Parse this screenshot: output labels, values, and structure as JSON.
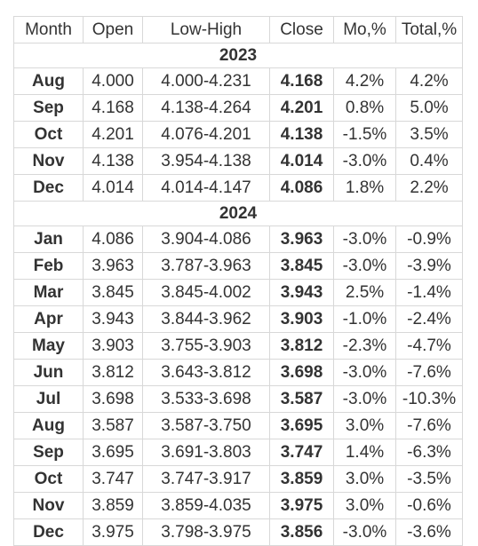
{
  "table": {
    "header": [
      "Month",
      "Open",
      "Low-High",
      "Close",
      "Mo,%",
      "Total,%"
    ],
    "groups": [
      {
        "year": "2023",
        "rows": [
          [
            "Aug",
            "4.000",
            "4.000-4.231",
            "4.168",
            "4.2%",
            "4.2%"
          ],
          [
            "Sep",
            "4.168",
            "4.138-4.264",
            "4.201",
            "0.8%",
            "5.0%"
          ],
          [
            "Oct",
            "4.201",
            "4.076-4.201",
            "4.138",
            "-1.5%",
            "3.5%"
          ],
          [
            "Nov",
            "4.138",
            "3.954-4.138",
            "4.014",
            "-3.0%",
            "0.4%"
          ],
          [
            "Dec",
            "4.014",
            "4.014-4.147",
            "4.086",
            "1.8%",
            "2.2%"
          ]
        ]
      },
      {
        "year": "2024",
        "rows": [
          [
            "Jan",
            "4.086",
            "3.904-4.086",
            "3.963",
            "-3.0%",
            "-0.9%"
          ],
          [
            "Feb",
            "3.963",
            "3.787-3.963",
            "3.845",
            "-3.0%",
            "-3.9%"
          ],
          [
            "Mar",
            "3.845",
            "3.845-4.002",
            "3.943",
            "2.5%",
            "-1.4%"
          ],
          [
            "Apr",
            "3.943",
            "3.844-3.962",
            "3.903",
            "-1.0%",
            "-2.4%"
          ],
          [
            "May",
            "3.903",
            "3.755-3.903",
            "3.812",
            "-2.3%",
            "-4.7%"
          ],
          [
            "Jun",
            "3.812",
            "3.643-3.812",
            "3.698",
            "-3.0%",
            "-7.6%"
          ],
          [
            "Jul",
            "3.698",
            "3.533-3.698",
            "3.587",
            "-3.0%",
            "-10.3%"
          ],
          [
            "Aug",
            "3.587",
            "3.587-3.750",
            "3.695",
            "3.0%",
            "-7.6%"
          ],
          [
            "Sep",
            "3.695",
            "3.691-3.803",
            "3.747",
            "1.4%",
            "-6.3%"
          ],
          [
            "Oct",
            "3.747",
            "3.747-3.917",
            "3.859",
            "3.0%",
            "-3.5%"
          ],
          [
            "Nov",
            "3.859",
            "3.859-4.035",
            "3.975",
            "3.0%",
            "-0.6%"
          ],
          [
            "Dec",
            "3.975",
            "3.798-3.975",
            "3.856",
            "-3.0%",
            "-3.6%"
          ]
        ]
      }
    ]
  }
}
